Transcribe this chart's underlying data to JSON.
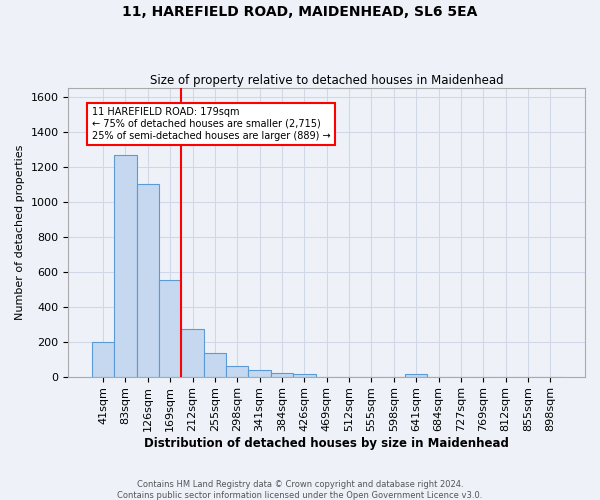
{
  "title1": "11, HAREFIELD ROAD, MAIDENHEAD, SL6 5EA",
  "title2": "Size of property relative to detached houses in Maidenhead",
  "xlabel": "Distribution of detached houses by size in Maidenhead",
  "ylabel": "Number of detached properties",
  "footer1": "Contains HM Land Registry data © Crown copyright and database right 2024.",
  "footer2": "Contains public sector information licensed under the Open Government Licence v3.0.",
  "bin_labels": [
    "41sqm",
    "83sqm",
    "126sqm",
    "169sqm",
    "212sqm",
    "255sqm",
    "298sqm",
    "341sqm",
    "384sqm",
    "426sqm",
    "469sqm",
    "512sqm",
    "555sqm",
    "598sqm",
    "641sqm",
    "684sqm",
    "727sqm",
    "769sqm",
    "812sqm",
    "855sqm",
    "898sqm"
  ],
  "bar_values": [
    197,
    1270,
    1100,
    553,
    270,
    135,
    62,
    35,
    20,
    12,
    0,
    0,
    0,
    0,
    12,
    0,
    0,
    0,
    0,
    0,
    0
  ],
  "bar_color": "#c5d8f0",
  "bar_edge_color": "#5b9bd5",
  "grid_color": "#d0d8e8",
  "background_color": "#eef2f8",
  "vline_x": 3.5,
  "vline_color": "red",
  "annotation_text": "11 HAREFIELD ROAD: 179sqm\n← 75% of detached houses are smaller (2,715)\n25% of semi-detached houses are larger (889) →",
  "annotation_box_color": "white",
  "annotation_box_edge": "red",
  "ylim": [
    0,
    1650
  ],
  "yticks": [
    0,
    200,
    400,
    600,
    800,
    1000,
    1200,
    1400,
    1600
  ]
}
